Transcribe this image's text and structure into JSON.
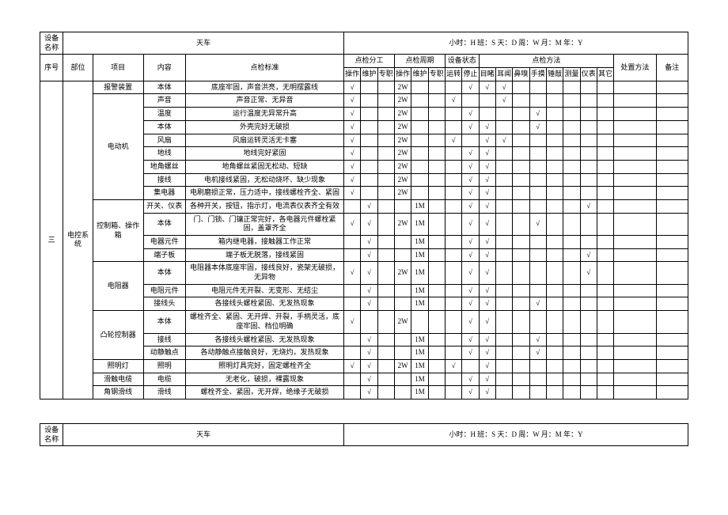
{
  "header": {
    "device_name_label": "设备名称",
    "device_name": "天车",
    "time_legend": "小时：H  班：S  天：D 周：W  月：M  年：Y"
  },
  "col_headers": {
    "seq": "序号",
    "part": "部位",
    "item": "项目",
    "content": "内容",
    "standard": "点检标准",
    "group_div": "点检分工",
    "group_cycle": "点检周期",
    "group_status": "设备状态",
    "group_method": "点检方法",
    "dispose": "处置方法",
    "remark": "备注",
    "div": {
      "op": "操作",
      "maint": "维护",
      "spec": "专职"
    },
    "cycle": {
      "op": "操作",
      "maint": "维护",
      "spec": "专职"
    },
    "status": {
      "run": "运转",
      "stop": "停止"
    },
    "method": {
      "eye": "目睹",
      "ear": "耳闻",
      "nose": "鼻嗅",
      "hand": "手摸",
      "hammer": "锤敲",
      "measure": "测量",
      "meter": "仪表",
      "other": "其它"
    }
  },
  "main": {
    "seq": "三",
    "part": "电控系统",
    "groups": [
      {
        "item": "报警装置",
        "rows": [
          {
            "content": "本体",
            "std": "底座牢固，声音洪亮，无明摆露线",
            "d_op": "√",
            "d_maint": "",
            "d_spec": "",
            "c_op": "2W",
            "c_maint": "",
            "c_spec": "",
            "s_run": "",
            "s_stop": "√",
            "m_eye": "√",
            "m_ear": "√",
            "m_nose": "",
            "m_hand": "",
            "m_hammer": "",
            "m_measure": "",
            "m_meter": "",
            "m_other": ""
          }
        ]
      },
      {
        "item": "电动机",
        "rows": [
          {
            "content": "声音",
            "std": "声音正常、无异音",
            "d_op": "√",
            "d_maint": "",
            "d_spec": "",
            "c_op": "2W",
            "c_maint": "",
            "c_spec": "",
            "s_run": "√",
            "s_stop": "",
            "m_eye": "",
            "m_ear": "√",
            "m_nose": "",
            "m_hand": "",
            "m_hammer": "",
            "m_measure": "",
            "m_meter": "",
            "m_other": ""
          },
          {
            "content": "温度",
            "std": "运行温度无异常升高",
            "d_op": "√",
            "d_maint": "",
            "d_spec": "",
            "c_op": "2W",
            "c_maint": "",
            "c_spec": "",
            "s_run": "",
            "s_stop": "√",
            "m_eye": "",
            "m_ear": "",
            "m_nose": "",
            "m_hand": "√",
            "m_hammer": "",
            "m_measure": "",
            "m_meter": "",
            "m_other": ""
          },
          {
            "content": "本体",
            "std": "外壳完好无破损",
            "d_op": "√",
            "d_maint": "",
            "d_spec": "",
            "c_op": "2W",
            "c_maint": "",
            "c_spec": "",
            "s_run": "",
            "s_stop": "√",
            "m_eye": "√",
            "m_ear": "",
            "m_nose": "",
            "m_hand": "√",
            "m_hammer": "",
            "m_measure": "",
            "m_meter": "",
            "m_other": ""
          },
          {
            "content": "风扇",
            "std": "风扇运转灵活无卡塞",
            "d_op": "√",
            "d_maint": "",
            "d_spec": "",
            "c_op": "2W",
            "c_maint": "",
            "c_spec": "",
            "s_run": "√",
            "s_stop": "",
            "m_eye": "√",
            "m_ear": "√",
            "m_nose": "",
            "m_hand": "",
            "m_hammer": "",
            "m_measure": "",
            "m_meter": "",
            "m_other": ""
          },
          {
            "content": "地线",
            "std": "地线完好紧固",
            "d_op": "√",
            "d_maint": "",
            "d_spec": "",
            "c_op": "2W",
            "c_maint": "",
            "c_spec": "",
            "s_run": "",
            "s_stop": "√",
            "m_eye": "√",
            "m_ear": "",
            "m_nose": "",
            "m_hand": "",
            "m_hammer": "",
            "m_measure": "",
            "m_meter": "",
            "m_other": ""
          },
          {
            "content": "地角螺丝",
            "std": "地角螺丝紧固无松动、短缺",
            "d_op": "√",
            "d_maint": "",
            "d_spec": "",
            "c_op": "2W",
            "c_maint": "",
            "c_spec": "",
            "s_run": "",
            "s_stop": "√",
            "m_eye": "√",
            "m_ear": "",
            "m_nose": "",
            "m_hand": "",
            "m_hammer": "",
            "m_measure": "",
            "m_meter": "",
            "m_other": ""
          },
          {
            "content": "接线",
            "std": "电机接线紧固，无松动烧坏、缺少现象",
            "d_op": "√",
            "d_maint": "",
            "d_spec": "",
            "c_op": "2W",
            "c_maint": "",
            "c_spec": "",
            "s_run": "",
            "s_stop": "√",
            "m_eye": "√",
            "m_ear": "",
            "m_nose": "",
            "m_hand": "",
            "m_hammer": "",
            "m_measure": "",
            "m_meter": "",
            "m_other": ""
          },
          {
            "content": "集电器",
            "std": "电刷磨损正常，压力适中，接线螺栓齐全、紧固",
            "d_op": "√",
            "d_maint": "",
            "d_spec": "",
            "c_op": "2W",
            "c_maint": "",
            "c_spec": "",
            "s_run": "",
            "s_stop": "√",
            "m_eye": "√",
            "m_ear": "",
            "m_nose": "",
            "m_hand": "",
            "m_hammer": "",
            "m_measure": "",
            "m_meter": "",
            "m_other": ""
          }
        ]
      },
      {
        "item": "控制箱、操作箱",
        "rows": [
          {
            "content": "开关、仪表",
            "std": "各种开关，按钮，指示灯，电流表仪表齐全有效",
            "d_op": "",
            "d_maint": "√",
            "d_spec": "",
            "c_op": "",
            "c_maint": "1M",
            "c_spec": "",
            "s_run": "",
            "s_stop": "√",
            "m_eye": "√",
            "m_ear": "",
            "m_nose": "",
            "m_hand": "",
            "m_hammer": "",
            "m_measure": "",
            "m_meter": "√",
            "m_other": ""
          },
          {
            "content": "本体",
            "std": "门、门锁、门镶正常完好，各电器元件螺栓紧固，盖罩齐全",
            "d_op": "√",
            "d_maint": "√",
            "d_spec": "",
            "c_op": "2W",
            "c_maint": "1M",
            "c_spec": "",
            "s_run": "",
            "s_stop": "√",
            "m_eye": "√",
            "m_ear": "",
            "m_nose": "",
            "m_hand": "√",
            "m_hammer": "",
            "m_measure": "",
            "m_meter": "",
            "m_other": ""
          },
          {
            "content": "电器元件",
            "std": "箱内继电器，接触器工作正常",
            "d_op": "",
            "d_maint": "√",
            "d_spec": "",
            "c_op": "",
            "c_maint": "1M",
            "c_spec": "",
            "s_run": "",
            "s_stop": "√",
            "m_eye": "√",
            "m_ear": "",
            "m_nose": "",
            "m_hand": "",
            "m_hammer": "",
            "m_measure": "",
            "m_meter": "",
            "m_other": ""
          },
          {
            "content": "端子板",
            "std": "端子板无脱落，接线紧固",
            "d_op": "",
            "d_maint": "√",
            "d_spec": "",
            "c_op": "",
            "c_maint": "1M",
            "c_spec": "",
            "s_run": "",
            "s_stop": "√",
            "m_eye": "√",
            "m_ear": "",
            "m_nose": "",
            "m_hand": "",
            "m_hammer": "",
            "m_measure": "",
            "m_meter": "√",
            "m_other": ""
          }
        ]
      },
      {
        "item": "电阻器",
        "rows": [
          {
            "content": "本体",
            "std": "电阻器本体底座牢固，接线良好，瓷架无破损，无异物",
            "d_op": "√",
            "d_maint": "√",
            "d_spec": "",
            "c_op": "2W",
            "c_maint": "1M",
            "c_spec": "",
            "s_run": "",
            "s_stop": "√",
            "m_eye": "√",
            "m_ear": "",
            "m_nose": "",
            "m_hand": "",
            "m_hammer": "",
            "m_measure": "",
            "m_meter": "√",
            "m_other": ""
          },
          {
            "content": "电阻元件",
            "std": "电阻元件无开裂、无变形、无结尘",
            "d_op": "",
            "d_maint": "√",
            "d_spec": "",
            "c_op": "",
            "c_maint": "1M",
            "c_spec": "",
            "s_run": "",
            "s_stop": "√",
            "m_eye": "√",
            "m_ear": "",
            "m_nose": "",
            "m_hand": "",
            "m_hammer": "",
            "m_measure": "",
            "m_meter": "",
            "m_other": ""
          },
          {
            "content": "接线头",
            "std": "各接线头螺栓紧固、无发热现象",
            "d_op": "",
            "d_maint": "√",
            "d_spec": "",
            "c_op": "",
            "c_maint": "1M",
            "c_spec": "",
            "s_run": "",
            "s_stop": "√",
            "m_eye": "√",
            "m_ear": "",
            "m_nose": "",
            "m_hand": "√",
            "m_hammer": "",
            "m_measure": "",
            "m_meter": "",
            "m_other": ""
          }
        ]
      },
      {
        "item": "凸轮控制器",
        "rows": [
          {
            "content": "本体",
            "std": "螺栓齐全、紧固、无开焊、开裂，手柄灵活，底座牢固、档位明确",
            "d_op": "√",
            "d_maint": "",
            "d_spec": "",
            "c_op": "2W",
            "c_maint": "",
            "c_spec": "",
            "s_run": "",
            "s_stop": "√",
            "m_eye": "√",
            "m_ear": "",
            "m_nose": "",
            "m_hand": "",
            "m_hammer": "",
            "m_measure": "",
            "m_meter": "",
            "m_other": ""
          },
          {
            "content": "接线",
            "std": "各接线头螺栓紧固、无发热现象",
            "d_op": "",
            "d_maint": "√",
            "d_spec": "",
            "c_op": "",
            "c_maint": "1M",
            "c_spec": "",
            "s_run": "",
            "s_stop": "√",
            "m_eye": "√",
            "m_ear": "",
            "m_nose": "",
            "m_hand": "√",
            "m_hammer": "",
            "m_measure": "",
            "m_meter": "",
            "m_other": ""
          },
          {
            "content": "动静触点",
            "std": "各动静触点接触良好，无烧灼，发热现象",
            "d_op": "",
            "d_maint": "√",
            "d_spec": "",
            "c_op": "",
            "c_maint": "1M",
            "c_spec": "",
            "s_run": "",
            "s_stop": "√",
            "m_eye": "√",
            "m_ear": "",
            "m_nose": "",
            "m_hand": "√",
            "m_hammer": "",
            "m_measure": "",
            "m_meter": "",
            "m_other": ""
          }
        ]
      },
      {
        "item": "照明灯",
        "rows": [
          {
            "content": "照明",
            "std": "照明灯具完好，固定螺栓齐全",
            "d_op": "√",
            "d_maint": "√",
            "d_spec": "",
            "c_op": "2W",
            "c_maint": "1M",
            "c_spec": "",
            "s_run": "√",
            "s_stop": "",
            "m_eye": "√",
            "m_ear": "",
            "m_nose": "",
            "m_hand": "",
            "m_hammer": "",
            "m_measure": "",
            "m_meter": "",
            "m_other": ""
          }
        ]
      },
      {
        "item": "滑触电缆",
        "rows": [
          {
            "content": "电缆",
            "std": "无老化，破损，裸露现象",
            "d_op": "",
            "d_maint": "√",
            "d_spec": "",
            "c_op": "",
            "c_maint": "1M",
            "c_spec": "",
            "s_run": "",
            "s_stop": "√",
            "m_eye": "√",
            "m_ear": "",
            "m_nose": "",
            "m_hand": "",
            "m_hammer": "",
            "m_measure": "",
            "m_meter": "",
            "m_other": ""
          }
        ]
      },
      {
        "item": "角钢滑线",
        "rows": [
          {
            "content": "滑线",
            "std": "螺栓齐全、紧固，无开焊，绝缘子无破损",
            "d_op": "",
            "d_maint": "√",
            "d_spec": "",
            "c_op": "",
            "c_maint": "1M",
            "c_spec": "",
            "s_run": "",
            "s_stop": "√",
            "m_eye": "√",
            "m_ear": "",
            "m_nose": "",
            "m_hand": "",
            "m_hammer": "",
            "m_measure": "",
            "m_meter": "",
            "m_other": ""
          }
        ]
      }
    ]
  }
}
